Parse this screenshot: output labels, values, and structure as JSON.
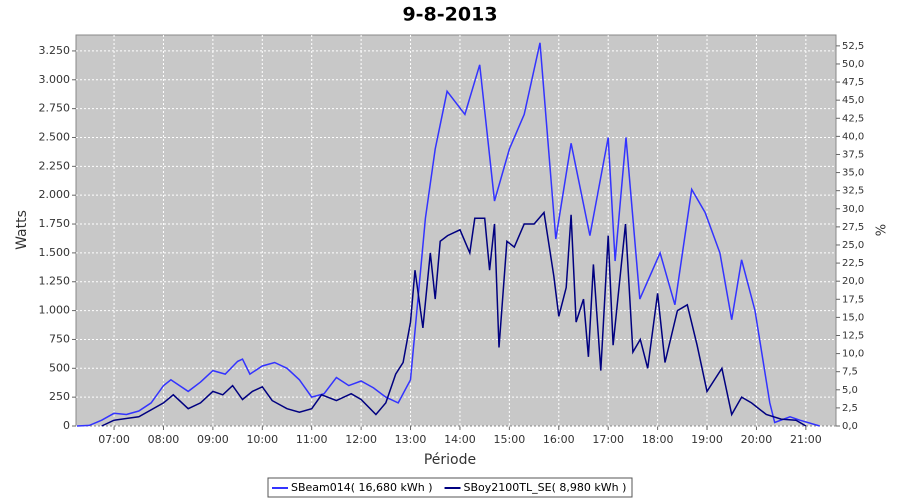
{
  "chart_data": {
    "type": "line",
    "title": "9-8-2013",
    "xlabel": "Période",
    "ylabel": "Watts",
    "y2label": "%",
    "xlim": [
      6.23,
      21.61
    ],
    "ylim": [
      0,
      3388
    ],
    "y2lim": [
      0,
      54
    ],
    "xticks": [
      {
        "value": 7,
        "label": "07:00"
      },
      {
        "value": 8,
        "label": "08:00"
      },
      {
        "value": 9,
        "label": "09:00"
      },
      {
        "value": 10,
        "label": "10:00"
      },
      {
        "value": 11,
        "label": "11:00"
      },
      {
        "value": 12,
        "label": "12:00"
      },
      {
        "value": 13,
        "label": "13:00"
      },
      {
        "value": 14,
        "label": "14:00"
      },
      {
        "value": 15,
        "label": "15:00"
      },
      {
        "value": 16,
        "label": "16:00"
      },
      {
        "value": 17,
        "label": "17:00"
      },
      {
        "value": 18,
        "label": "18:00"
      },
      {
        "value": 19,
        "label": "19:00"
      },
      {
        "value": 20,
        "label": "20:00"
      },
      {
        "value": 21,
        "label": "21:00"
      }
    ],
    "yticks": [
      0,
      250,
      500,
      750,
      {
        "value": 1000,
        "label": "1.000"
      },
      {
        "value": 1250,
        "label": "1.250"
      },
      {
        "value": 1500,
        "label": "1.500"
      },
      {
        "value": 1750,
        "label": "1.750"
      },
      {
        "value": 2000,
        "label": "2.000"
      },
      {
        "value": 2250,
        "label": "2.250"
      },
      {
        "value": 2500,
        "label": "2.500"
      },
      {
        "value": 2750,
        "label": "2.750"
      },
      {
        "value": 3000,
        "label": "3.000"
      },
      {
        "value": 3250,
        "label": "3.250"
      }
    ],
    "y2ticks": [
      {
        "value": 0,
        "label": "0,0"
      },
      {
        "value": 2.5,
        "label": "2,5"
      },
      {
        "value": 5,
        "label": "5,0"
      },
      {
        "value": 7.5,
        "label": "7,5"
      },
      {
        "value": 10,
        "label": "10,0"
      },
      {
        "value": 12.5,
        "label": "12,5"
      },
      {
        "value": 15,
        "label": "15,0"
      },
      {
        "value": 17.5,
        "label": "17,5"
      },
      {
        "value": 20,
        "label": "20,0"
      },
      {
        "value": 22.5,
        "label": "22,5"
      },
      {
        "value": 25,
        "label": "25,0"
      },
      {
        "value": 27.5,
        "label": "27,5"
      },
      {
        "value": 30,
        "label": "30,0"
      },
      {
        "value": 32.5,
        "label": "32,5"
      },
      {
        "value": 35,
        "label": "35,0"
      },
      {
        "value": 37.5,
        "label": "37,5"
      },
      {
        "value": 40,
        "label": "40,0"
      },
      {
        "value": 42.5,
        "label": "42,5"
      },
      {
        "value": 45,
        "label": "45,0"
      },
      {
        "value": 47.5,
        "label": "47,5"
      },
      {
        "value": 50,
        "label": "50,0"
      },
      {
        "value": 52.5,
        "label": "52,5"
      }
    ],
    "grid": true,
    "series": [
      {
        "name": "SBeam014( 16,680 kWh )",
        "color": "#3333ff",
        "x": [
          6.25,
          6.5,
          6.75,
          7.0,
          7.25,
          7.5,
          7.75,
          8.0,
          8.15,
          8.5,
          8.75,
          9.0,
          9.25,
          9.5,
          9.6,
          9.75,
          10.0,
          10.25,
          10.5,
          10.75,
          11.0,
          11.25,
          11.5,
          11.75,
          12.0,
          12.25,
          12.5,
          12.75,
          13.0,
          13.3,
          13.5,
          13.74,
          14.1,
          14.4,
          14.7,
          15.0,
          15.3,
          15.62,
          15.94,
          16.25,
          16.63,
          17.0,
          17.14,
          17.36,
          17.64,
          18.05,
          18.35,
          18.69,
          18.96,
          19.26,
          19.5,
          19.7,
          19.97,
          20.27,
          20.37,
          20.68,
          20.88,
          21.28
        ],
        "values": [
          0,
          5,
          50,
          110,
          100,
          130,
          200,
          350,
          400,
          300,
          380,
          480,
          450,
          560,
          580,
          450,
          520,
          550,
          500,
          400,
          250,
          280,
          420,
          350,
          390,
          330,
          250,
          200,
          400,
          1800,
          2400,
          2900,
          2700,
          3130,
          1950,
          2400,
          2700,
          3320,
          1620,
          2450,
          1650,
          2500,
          1430,
          2500,
          1100,
          1500,
          1050,
          2050,
          1850,
          1500,
          920,
          1440,
          1000,
          200,
          30,
          80,
          50,
          0
        ]
      },
      {
        "name": "SBoy2100TL_SE( 8,980 kWh )",
        "color": "#000080",
        "x": [
          6.75,
          7.0,
          7.5,
          8.0,
          8.2,
          8.5,
          8.75,
          9.0,
          9.2,
          9.4,
          9.6,
          9.8,
          10.0,
          10.2,
          10.5,
          10.75,
          11.0,
          11.2,
          11.5,
          11.8,
          12.0,
          12.3,
          12.5,
          12.7,
          12.85,
          13.0,
          13.09,
          13.25,
          13.4,
          13.5,
          13.6,
          13.75,
          14.0,
          14.2,
          14.3,
          14.5,
          14.6,
          14.7,
          14.79,
          14.95,
          15.1,
          15.3,
          15.5,
          15.7,
          15.9,
          16.0,
          16.15,
          16.25,
          16.35,
          16.5,
          16.6,
          16.7,
          16.85,
          17.0,
          17.1,
          17.35,
          17.5,
          17.65,
          17.8,
          18.0,
          18.15,
          18.4,
          18.6,
          18.8,
          19.0,
          19.3,
          19.5,
          19.7,
          19.9,
          20.2,
          20.5,
          20.8,
          21.0
        ],
        "values": [
          0,
          50,
          80,
          200,
          270,
          150,
          200,
          300,
          270,
          350,
          230,
          300,
          340,
          220,
          150,
          120,
          150,
          270,
          220,
          280,
          230,
          100,
          200,
          450,
          550,
          900,
          1350,
          850,
          1500,
          1100,
          1600,
          1650,
          1700,
          1500,
          1800,
          1800,
          1350,
          1750,
          680,
          1600,
          1550,
          1750,
          1750,
          1850,
          1300,
          950,
          1200,
          1830,
          900,
          1100,
          600,
          1400,
          480,
          1650,
          700,
          1750,
          640,
          750,
          500,
          1150,
          550,
          1000,
          1050,
          700,
          300,
          500,
          100,
          250,
          200,
          100,
          60,
          50,
          0
        ]
      }
    ]
  }
}
